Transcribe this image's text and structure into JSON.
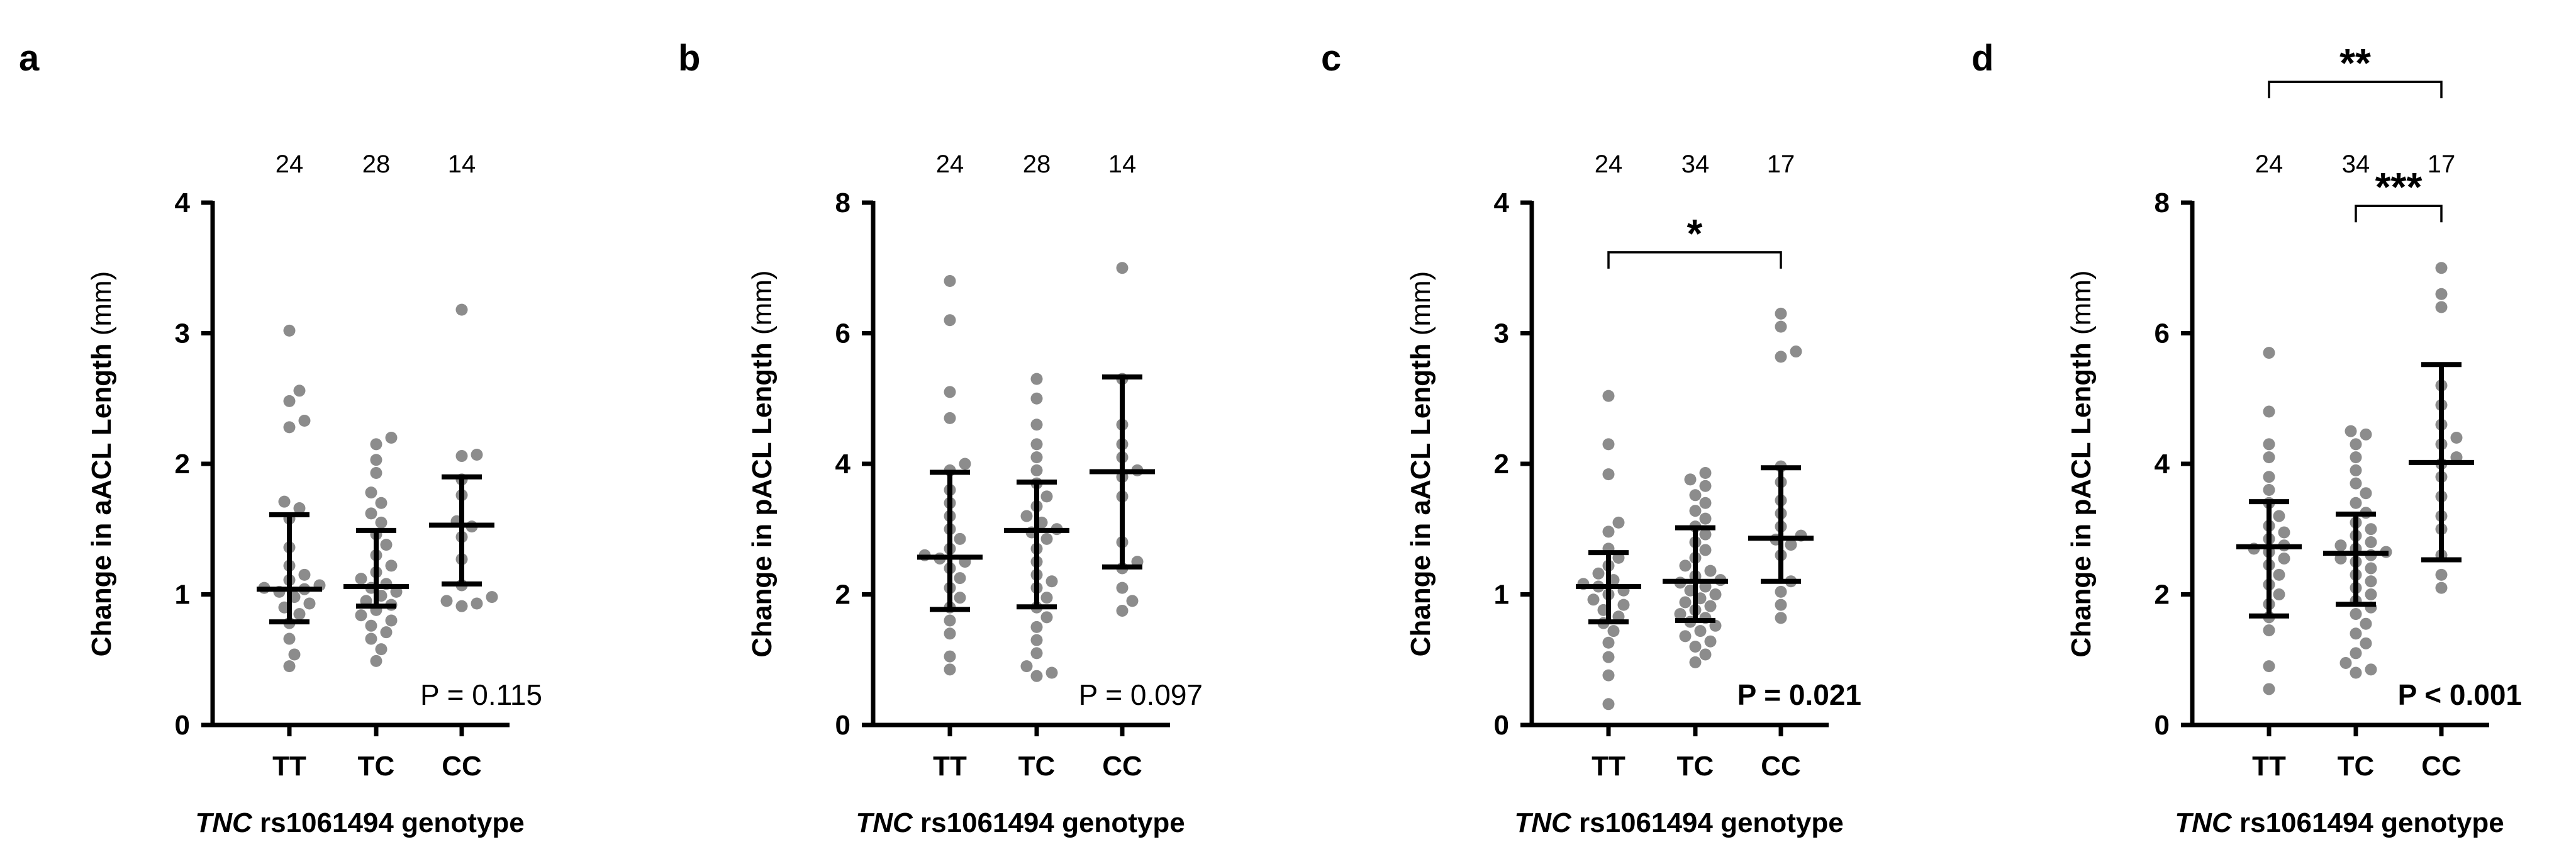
{
  "figure": {
    "xlabel_italic": "TNC",
    "xlabel_rest": " rs1061494 genotype"
  },
  "chart_data": [
    {
      "type": "scatter",
      "panel": "a",
      "title": "",
      "ylabel_bold": "Change in aACL Length",
      "ylabel_unit": " (mm)",
      "xlabel": "TNC rs1061494 genotype",
      "ylim": [
        0,
        4
      ],
      "yticks": [
        0,
        1,
        2,
        3,
        4
      ],
      "categories": [
        "TT",
        "TC",
        "CC"
      ],
      "counts": [
        "24",
        "28",
        "14"
      ],
      "medians": [
        1.04,
        1.06,
        1.53
      ],
      "err_low": [
        0.79,
        0.91,
        1.08
      ],
      "err_high": [
        1.61,
        1.49,
        1.9
      ],
      "points": [
        [
          3.02,
          2.56,
          2.48,
          2.33,
          2.28,
          1.71,
          1.66,
          1.58,
          1.36,
          1.22,
          1.15,
          1.11,
          1.07,
          1.05,
          1.04,
          1.02,
          0.98,
          0.93,
          0.9,
          0.85,
          0.78,
          0.66,
          0.54,
          0.45
        ],
        [
          2.2,
          2.15,
          2.03,
          1.93,
          1.78,
          1.7,
          1.62,
          1.55,
          1.46,
          1.38,
          1.3,
          1.22,
          1.17,
          1.12,
          1.08,
          1.05,
          1.02,
          0.99,
          0.95,
          0.92,
          0.88,
          0.84,
          0.8,
          0.76,
          0.71,
          0.66,
          0.58,
          0.49
        ],
        [
          3.18,
          2.07,
          2.06,
          1.88,
          1.76,
          1.56,
          1.52,
          1.44,
          1.27,
          1.07,
          0.98,
          0.95,
          0.93,
          0.91
        ]
      ],
      "pvalue": "P = 0.115",
      "pvalue_bold": false,
      "brackets": []
    },
    {
      "type": "scatter",
      "panel": "b",
      "title": "",
      "ylabel_bold": "Change in pACL Length",
      "ylabel_unit": " (mm)",
      "xlabel": "TNC rs1061494 genotype",
      "ylim": [
        0,
        8
      ],
      "yticks": [
        0,
        2,
        4,
        6,
        8
      ],
      "categories": [
        "TT",
        "TC",
        "CC"
      ],
      "counts": [
        "24",
        "28",
        "14"
      ],
      "medians": [
        2.57,
        2.98,
        3.88
      ],
      "err_low": [
        1.77,
        1.81,
        2.42
      ],
      "err_high": [
        3.87,
        3.72,
        5.33
      ],
      "points": [
        [
          6.8,
          6.2,
          5.1,
          4.7,
          4.0,
          3.9,
          3.6,
          3.4,
          3.2,
          3.0,
          2.85,
          2.7,
          2.6,
          2.55,
          2.5,
          2.4,
          2.25,
          2.1,
          1.95,
          1.8,
          1.6,
          1.4,
          1.05,
          0.85
        ],
        [
          5.3,
          5.0,
          4.6,
          4.3,
          4.1,
          3.9,
          3.7,
          3.5,
          3.35,
          3.2,
          3.1,
          3.0,
          2.95,
          2.85,
          2.7,
          2.5,
          2.3,
          2.2,
          2.1,
          1.95,
          1.8,
          1.65,
          1.5,
          1.3,
          1.1,
          0.9,
          0.8,
          0.75
        ],
        [
          7.0,
          5.3,
          4.6,
          4.3,
          4.1,
          3.9,
          3.8,
          3.5,
          2.8,
          2.5,
          2.4,
          2.1,
          1.9,
          1.75
        ]
      ],
      "pvalue": "P = 0.097",
      "pvalue_bold": false,
      "brackets": []
    },
    {
      "type": "scatter",
      "panel": "c",
      "title": "",
      "ylabel_bold": "Change in aACL Length",
      "ylabel_unit": " (mm)",
      "xlabel": "TNC rs1061494 genotype",
      "ylim": [
        0,
        4
      ],
      "yticks": [
        0,
        1,
        2,
        3,
        4
      ],
      "categories": [
        "TT",
        "TC",
        "CC"
      ],
      "counts": [
        "24",
        "34",
        "17"
      ],
      "medians": [
        1.06,
        1.1,
        1.43
      ],
      "err_low": [
        0.79,
        0.8,
        1.1
      ],
      "err_high": [
        1.32,
        1.51,
        1.97
      ],
      "points": [
        [
          2.52,
          2.15,
          1.92,
          1.55,
          1.48,
          1.35,
          1.28,
          1.22,
          1.16,
          1.11,
          1.08,
          1.06,
          1.03,
          1.0,
          0.96,
          0.92,
          0.88,
          0.83,
          0.78,
          0.72,
          0.63,
          0.52,
          0.38,
          0.16
        ],
        [
          1.93,
          1.88,
          1.83,
          1.76,
          1.7,
          1.64,
          1.58,
          1.52,
          1.46,
          1.4,
          1.34,
          1.28,
          1.22,
          1.18,
          1.14,
          1.11,
          1.09,
          1.06,
          1.03,
          1.0,
          0.97,
          0.94,
          0.91,
          0.88,
          0.85,
          0.82,
          0.79,
          0.76,
          0.72,
          0.68,
          0.64,
          0.6,
          0.54,
          0.48
        ],
        [
          3.15,
          3.05,
          2.86,
          2.82,
          1.98,
          1.86,
          1.72,
          1.62,
          1.52,
          1.45,
          1.42,
          1.38,
          1.3,
          1.1,
          1.02,
          0.92,
          0.82
        ]
      ],
      "pvalue": "P = 0.021",
      "pvalue_bold": true,
      "brackets": [
        {
          "from": 0,
          "to": 2,
          "y": 3.62,
          "label": "*"
        }
      ]
    },
    {
      "type": "scatter",
      "panel": "d",
      "title": "",
      "ylabel_bold": "Change in pACL Length",
      "ylabel_unit": " (mm)",
      "xlabel": "TNC rs1061494 genotype",
      "ylim": [
        0,
        8
      ],
      "yticks": [
        0,
        2,
        4,
        6,
        8
      ],
      "categories": [
        "TT",
        "TC",
        "CC"
      ],
      "counts": [
        "24",
        "34",
        "17"
      ],
      "medians": [
        2.73,
        2.63,
        4.02
      ],
      "err_low": [
        1.67,
        1.85,
        2.53
      ],
      "err_high": [
        3.42,
        3.23,
        5.52
      ],
      "points": [
        [
          5.7,
          4.8,
          4.3,
          4.1,
          3.8,
          3.6,
          3.4,
          3.2,
          3.05,
          2.95,
          2.85,
          2.75,
          2.7,
          2.65,
          2.55,
          2.45,
          2.3,
          2.15,
          2.0,
          1.85,
          1.65,
          1.45,
          0.9,
          0.55
        ],
        [
          4.5,
          4.45,
          4.3,
          4.1,
          3.9,
          3.7,
          3.55,
          3.4,
          3.25,
          3.1,
          3.0,
          2.9,
          2.8,
          2.75,
          2.7,
          2.65,
          2.6,
          2.55,
          2.5,
          2.4,
          2.3,
          2.2,
          2.1,
          2.0,
          1.9,
          1.8,
          1.7,
          1.55,
          1.4,
          1.25,
          1.1,
          0.95,
          0.85,
          0.8
        ],
        [
          7.0,
          6.6,
          6.4,
          5.2,
          4.9,
          4.6,
          4.4,
          4.3,
          4.1,
          4.0,
          3.8,
          3.5,
          3.2,
          3.0,
          2.6,
          2.3,
          2.1
        ]
      ],
      "pvalue": "P < 0.001",
      "pvalue_bold": true,
      "brackets": [
        {
          "from": 0,
          "to": 2,
          "y": 9.85,
          "label": "**"
        },
        {
          "from": 1,
          "to": 2,
          "y": 7.95,
          "label": "***"
        }
      ]
    }
  ]
}
